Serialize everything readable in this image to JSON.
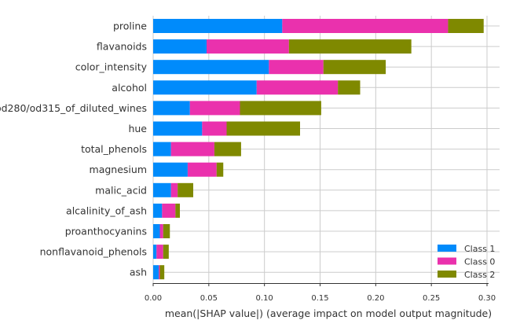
{
  "chart_data": {
    "type": "bar",
    "orientation": "horizontal",
    "stacked": true,
    "categories": [
      "proline",
      "flavanoids",
      "color_intensity",
      "alcohol",
      "od280/od315_of_diluted_wines",
      "hue",
      "total_phenols",
      "magnesium",
      "malic_acid",
      "alcalinity_of_ash",
      "proanthocyanins",
      "nonflavanoid_phenols",
      "ash"
    ],
    "series": [
      {
        "name": "Class 1",
        "color": "#008bfb",
        "values": [
          0.116,
          0.048,
          0.104,
          0.093,
          0.033,
          0.044,
          0.016,
          0.031,
          0.016,
          0.008,
          0.006,
          0.003,
          0.005
        ]
      },
      {
        "name": "Class 0",
        "color": "#ea31ad",
        "values": [
          0.149,
          0.074,
          0.049,
          0.073,
          0.045,
          0.022,
          0.039,
          0.026,
          0.006,
          0.012,
          0.003,
          0.006,
          0.001
        ]
      },
      {
        "name": "Class 2",
        "color": "#7f8900",
        "values": [
          0.032,
          0.11,
          0.056,
          0.02,
          0.073,
          0.066,
          0.024,
          0.006,
          0.014,
          0.004,
          0.006,
          0.005,
          0.004
        ]
      }
    ],
    "xlabel": "mean(|SHAP value|) (average impact on model output magnitude)",
    "ylabel": "",
    "title": "",
    "xlim": [
      0,
      0.31
    ],
    "xticks": [
      0,
      0.05,
      0.1,
      0.15,
      0.2,
      0.25,
      0.3
    ],
    "xtick_labels": [
      "0.00",
      "0.05",
      "0.10",
      "0.15",
      "0.20",
      "0.25",
      "0.30"
    ],
    "grid": true,
    "legend_position": "bottom-right"
  }
}
